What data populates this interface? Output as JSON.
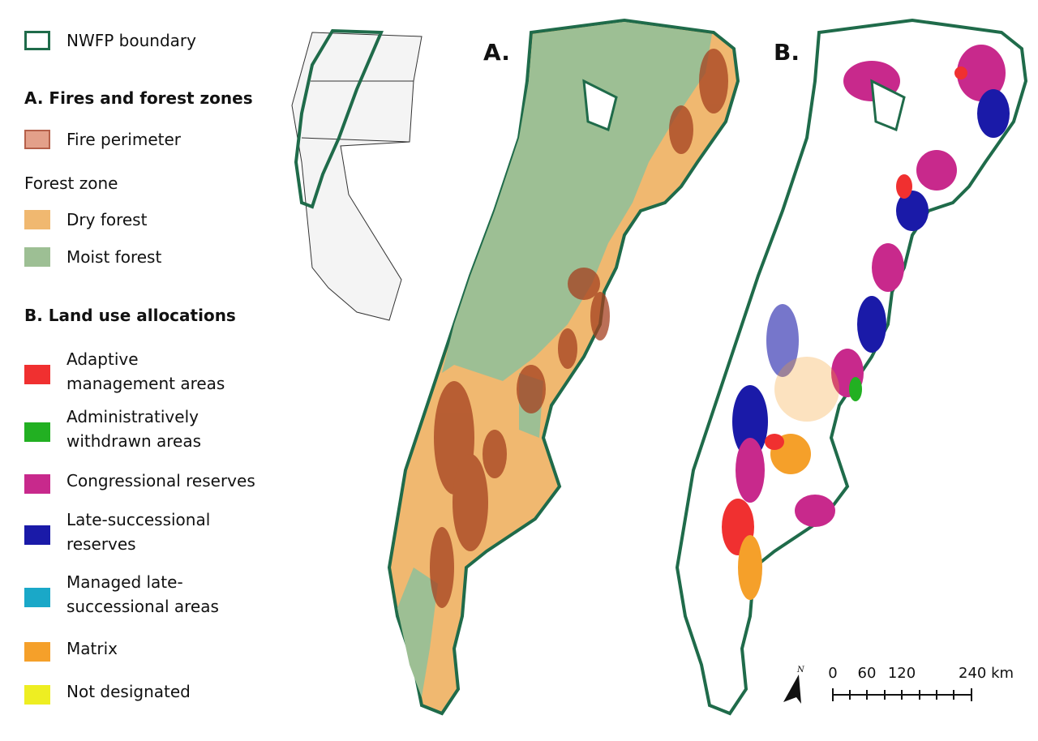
{
  "legend": {
    "boundary": {
      "label": "NWFP boundary",
      "color": "#1f6b4a"
    },
    "section_a": {
      "title": "A. Fires and forest zones",
      "fire": {
        "label": "Fire perimeter",
        "color": "#e3a08a"
      },
      "zone_title": "Forest zone",
      "items": [
        {
          "label": [
            "Dry forest"
          ],
          "color": "#f0b870"
        },
        {
          "label": [
            "Moist forest"
          ],
          "color": "#9dbf94"
        }
      ]
    },
    "section_b": {
      "title": "B. Land use allocations",
      "items": [
        {
          "label": [
            "Adaptive",
            "management areas"
          ],
          "color": "#f03030"
        },
        {
          "label": [
            "Administratively",
            "withdrawn areas"
          ],
          "color": "#22b022"
        },
        {
          "label": [
            "Congressional reserves"
          ],
          "color": "#c8298c"
        },
        {
          "label": [
            "Late-successional",
            "reserves"
          ],
          "color": "#1a1aa8"
        },
        {
          "label": [
            "Managed late-",
            "successional areas"
          ],
          "color": "#1aa8c8"
        },
        {
          "label": [
            "Matrix"
          ],
          "color": "#f5a02a"
        },
        {
          "label": [
            "Not designated"
          ],
          "color": "#eeee22"
        }
      ]
    }
  },
  "panels": [
    {
      "label": "A."
    },
    {
      "label": "B."
    }
  ],
  "north": "N",
  "scale_bar": {
    "labels": [
      "0",
      "60",
      "120",
      "240 km"
    ]
  }
}
